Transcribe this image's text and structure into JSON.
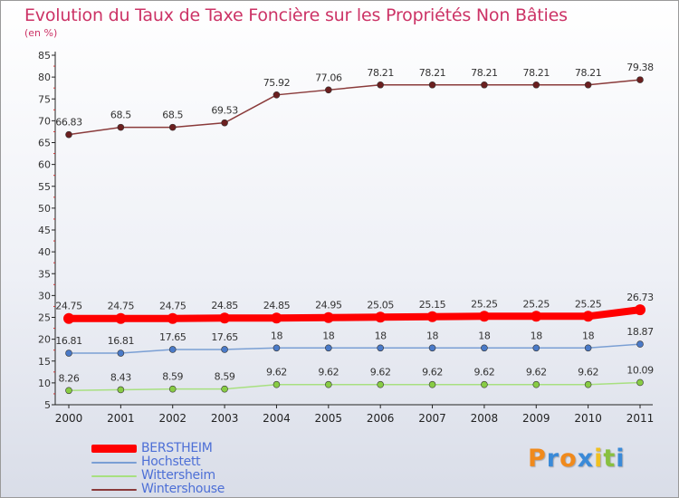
{
  "title": "Evolution du Taux de Taxe Foncière sur les Propriétés Non Bâties",
  "subtitle": "(en %)",
  "chart_data": {
    "type": "line",
    "title": "Evolution du Taux de Taxe Foncière sur les Propriétés Non Bâties",
    "ylabel": "(en %)",
    "xlabel": "",
    "x": [
      "2000",
      "2001",
      "2002",
      "2003",
      "2004",
      "2005",
      "2006",
      "2007",
      "2008",
      "2009",
      "2010",
      "2011"
    ],
    "ylim": [
      5,
      85
    ],
    "yticks": [
      "5",
      "10",
      "15",
      "20",
      "25",
      "30",
      "35",
      "40",
      "45",
      "50",
      "55",
      "60",
      "65",
      "70",
      "75",
      "80",
      "85"
    ],
    "grid": false,
    "legend_position": "bottom-left",
    "series": [
      {
        "name": "Wintershouse",
        "color": "#8a3a3a",
        "marker": "#6b1f1f",
        "values": [
          66.83,
          68.5,
          68.5,
          69.53,
          75.92,
          77.06,
          78.21,
          78.21,
          78.21,
          78.21,
          78.21,
          79.38
        ],
        "labels": [
          "66.83",
          "68.5",
          "68.5",
          "69.53",
          "75.92",
          "77.06",
          "78.21",
          "78.21",
          "78.21",
          "78.21",
          "78.21",
          "79.38"
        ]
      },
      {
        "name": "BERSTHEIM",
        "color": "#ff0000",
        "marker": "#ff0000",
        "values": [
          24.75,
          24.75,
          24.75,
          24.85,
          24.85,
          24.95,
          25.05,
          25.15,
          25.25,
          25.25,
          25.25,
          26.73
        ],
        "labels": [
          "24.75",
          "24.75",
          "24.75",
          "24.85",
          "24.85",
          "24.95",
          "25.05",
          "25.15",
          "25.25",
          "25.25",
          "25.25",
          "26.73"
        ]
      },
      {
        "name": "Hochstett",
        "color": "#7a9fd4",
        "marker": "#4a7ac8",
        "values": [
          16.81,
          16.81,
          17.65,
          17.65,
          18,
          18,
          18,
          18,
          18,
          18,
          18,
          18.87
        ],
        "labels": [
          "16.81",
          "16.81",
          "17.65",
          "17.65",
          "18",
          "18",
          "18",
          "18",
          "18",
          "18",
          "18",
          "18.87"
        ]
      },
      {
        "name": "Wittersheim",
        "color": "#a8e080",
        "marker": "#88cc44",
        "values": [
          8.26,
          8.43,
          8.59,
          8.59,
          9.62,
          9.62,
          9.62,
          9.62,
          9.62,
          9.62,
          9.62,
          10.09
        ],
        "labels": [
          "8.26",
          "8.43",
          "8.59",
          "8.59",
          "9.62",
          "9.62",
          "9.62",
          "9.62",
          "9.62",
          "9.62",
          "9.62",
          "10.09"
        ]
      }
    ]
  },
  "legend": [
    {
      "name": "BERSTHEIM",
      "color": "#ff0000"
    },
    {
      "name": "Hochstett",
      "color": "#7a9fd4"
    },
    {
      "name": "Wittersheim",
      "color": "#a8e080"
    },
    {
      "name": "Wintershouse",
      "color": "#8a3a3a"
    }
  ],
  "logo": {
    "letters": [
      "P",
      "r",
      "o",
      "x",
      "i",
      "t",
      "i"
    ],
    "colors": [
      "#f08a1c",
      "#3a8ad8",
      "#f08a1c",
      "#3a8ad8",
      "#f0c020",
      "#88c040",
      "#3a8ad8"
    ]
  }
}
